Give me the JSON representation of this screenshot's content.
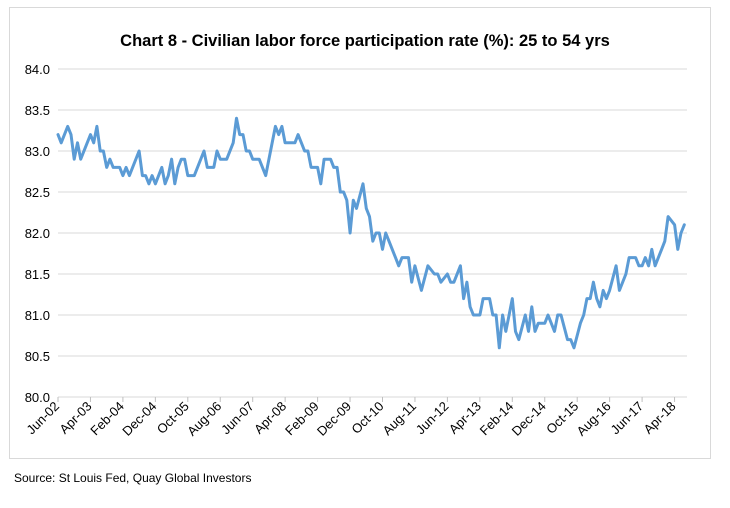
{
  "chart_data": {
    "type": "line",
    "title": "Chart 8 - Civilian labor force participation rate (%): 25 to 54 yrs",
    "xlabel": "",
    "ylabel": "",
    "ylim": [
      80.0,
      84.0
    ],
    "yticks": [
      "80.0",
      "80.5",
      "81.0",
      "81.5",
      "82.0",
      "82.5",
      "83.0",
      "83.5",
      "84.0"
    ],
    "xticks": [
      "Jun-02",
      "Apr-03",
      "Feb-04",
      "Dec-04",
      "Oct-05",
      "Aug-06",
      "Jun-07",
      "Apr-08",
      "Feb-09",
      "Dec-09",
      "Oct-10",
      "Aug-11",
      "Jun-12",
      "Apr-13",
      "Feb-14",
      "Dec-14",
      "Oct-15",
      "Aug-16",
      "Jun-17",
      "Apr-18"
    ],
    "xrange": [
      "2002-06",
      "2018-08"
    ],
    "grid": "horizontal",
    "line_color": "#5B9BD5",
    "series": [
      {
        "points": [
          [
            "2002-06",
            83.2
          ],
          [
            "2002-07",
            83.1
          ],
          [
            "2002-09",
            83.3
          ],
          [
            "2002-10",
            83.2
          ],
          [
            "2002-11",
            82.9
          ],
          [
            "2002-12",
            83.1
          ],
          [
            "2003-01",
            82.9
          ],
          [
            "2003-04",
            83.2
          ],
          [
            "2003-05",
            83.1
          ],
          [
            "2003-06",
            83.3
          ],
          [
            "2003-07",
            83.0
          ],
          [
            "2003-08",
            83.0
          ],
          [
            "2003-09",
            82.8
          ],
          [
            "2003-10",
            82.9
          ],
          [
            "2003-11",
            82.8
          ],
          [
            "2004-01",
            82.8
          ],
          [
            "2004-02",
            82.7
          ],
          [
            "2004-03",
            82.8
          ],
          [
            "2004-04",
            82.7
          ],
          [
            "2004-07",
            83.0
          ],
          [
            "2004-08",
            82.7
          ],
          [
            "2004-09",
            82.7
          ],
          [
            "2004-10",
            82.6
          ],
          [
            "2004-11",
            82.7
          ],
          [
            "2004-12",
            82.6
          ],
          [
            "2005-02",
            82.8
          ],
          [
            "2005-03",
            82.6
          ],
          [
            "2005-04",
            82.7
          ],
          [
            "2005-05",
            82.9
          ],
          [
            "2005-06",
            82.6
          ],
          [
            "2005-07",
            82.8
          ],
          [
            "2005-08",
            82.9
          ],
          [
            "2005-09",
            82.9
          ],
          [
            "2005-10",
            82.7
          ],
          [
            "2005-12",
            82.7
          ],
          [
            "2006-03",
            83.0
          ],
          [
            "2006-04",
            82.8
          ],
          [
            "2006-06",
            82.8
          ],
          [
            "2006-07",
            83.0
          ],
          [
            "2006-08",
            82.9
          ],
          [
            "2006-10",
            82.9
          ],
          [
            "2006-12",
            83.1
          ],
          [
            "2007-01",
            83.4
          ],
          [
            "2007-02",
            83.2
          ],
          [
            "2007-03",
            83.2
          ],
          [
            "2007-04",
            83.0
          ],
          [
            "2007-05",
            83.0
          ],
          [
            "2007-06",
            82.9
          ],
          [
            "2007-08",
            82.9
          ],
          [
            "2007-10",
            82.7
          ],
          [
            "2008-01",
            83.3
          ],
          [
            "2008-02",
            83.2
          ],
          [
            "2008-03",
            83.3
          ],
          [
            "2008-04",
            83.1
          ],
          [
            "2008-07",
            83.1
          ],
          [
            "2008-08",
            83.2
          ],
          [
            "2008-10",
            83.0
          ],
          [
            "2008-11",
            83.0
          ],
          [
            "2008-12",
            82.8
          ],
          [
            "2009-02",
            82.8
          ],
          [
            "2009-03",
            82.6
          ],
          [
            "2009-04",
            82.9
          ],
          [
            "2009-06",
            82.9
          ],
          [
            "2009-07",
            82.8
          ],
          [
            "2009-08",
            82.8
          ],
          [
            "2009-09",
            82.5
          ],
          [
            "2009-10",
            82.5
          ],
          [
            "2009-11",
            82.4
          ],
          [
            "2009-12",
            82.0
          ],
          [
            "2010-01",
            82.4
          ],
          [
            "2010-02",
            82.3
          ],
          [
            "2010-04",
            82.6
          ],
          [
            "2010-05",
            82.3
          ],
          [
            "2010-06",
            82.2
          ],
          [
            "2010-07",
            81.9
          ],
          [
            "2010-08",
            82.0
          ],
          [
            "2010-09",
            82.0
          ],
          [
            "2010-10",
            81.8
          ],
          [
            "2010-11",
            82.0
          ],
          [
            "2010-12",
            81.9
          ],
          [
            "2011-02",
            81.7
          ],
          [
            "2011-03",
            81.6
          ],
          [
            "2011-04",
            81.7
          ],
          [
            "2011-06",
            81.7
          ],
          [
            "2011-07",
            81.4
          ],
          [
            "2011-08",
            81.6
          ],
          [
            "2011-10",
            81.3
          ],
          [
            "2011-12",
            81.6
          ],
          [
            "2012-02",
            81.5
          ],
          [
            "2012-03",
            81.5
          ],
          [
            "2012-04",
            81.4
          ],
          [
            "2012-06",
            81.5
          ],
          [
            "2012-07",
            81.4
          ],
          [
            "2012-08",
            81.4
          ],
          [
            "2012-10",
            81.6
          ],
          [
            "2012-11",
            81.2
          ],
          [
            "2012-12",
            81.4
          ],
          [
            "2013-01",
            81.1
          ],
          [
            "2013-02",
            81.0
          ],
          [
            "2013-04",
            81.0
          ],
          [
            "2013-05",
            81.2
          ],
          [
            "2013-07",
            81.2
          ],
          [
            "2013-08",
            81.0
          ],
          [
            "2013-09",
            81.0
          ],
          [
            "2013-10",
            80.6
          ],
          [
            "2013-11",
            81.0
          ],
          [
            "2013-12",
            80.8
          ],
          [
            "2014-01",
            81.0
          ],
          [
            "2014-02",
            81.2
          ],
          [
            "2014-03",
            80.8
          ],
          [
            "2014-04",
            80.7
          ],
          [
            "2014-06",
            81.0
          ],
          [
            "2014-07",
            80.8
          ],
          [
            "2014-08",
            81.1
          ],
          [
            "2014-09",
            80.8
          ],
          [
            "2014-10",
            80.9
          ],
          [
            "2014-12",
            80.9
          ],
          [
            "2015-01",
            81.0
          ],
          [
            "2015-03",
            80.8
          ],
          [
            "2015-04",
            81.0
          ],
          [
            "2015-05",
            81.0
          ],
          [
            "2015-07",
            80.7
          ],
          [
            "2015-08",
            80.7
          ],
          [
            "2015-09",
            80.6
          ],
          [
            "2015-11",
            80.9
          ],
          [
            "2015-12",
            81.0
          ],
          [
            "2016-01",
            81.2
          ],
          [
            "2016-02",
            81.2
          ],
          [
            "2016-03",
            81.4
          ],
          [
            "2016-04",
            81.2
          ],
          [
            "2016-05",
            81.1
          ],
          [
            "2016-06",
            81.3
          ],
          [
            "2016-07",
            81.2
          ],
          [
            "2016-08",
            81.3
          ],
          [
            "2016-10",
            81.6
          ],
          [
            "2016-11",
            81.3
          ],
          [
            "2017-01",
            81.5
          ],
          [
            "2017-02",
            81.7
          ],
          [
            "2017-04",
            81.7
          ],
          [
            "2017-05",
            81.6
          ],
          [
            "2017-06",
            81.6
          ],
          [
            "2017-07",
            81.7
          ],
          [
            "2017-08",
            81.6
          ],
          [
            "2017-09",
            81.8
          ],
          [
            "2017-10",
            81.6
          ],
          [
            "2017-12",
            81.8
          ],
          [
            "2018-01",
            81.9
          ],
          [
            "2018-02",
            82.2
          ],
          [
            "2018-04",
            82.1
          ],
          [
            "2018-05",
            81.8
          ],
          [
            "2018-06",
            82.0
          ],
          [
            "2018-07",
            82.1
          ]
        ]
      }
    ]
  },
  "source": "Source: St Louis Fed, Quay Global Investors"
}
